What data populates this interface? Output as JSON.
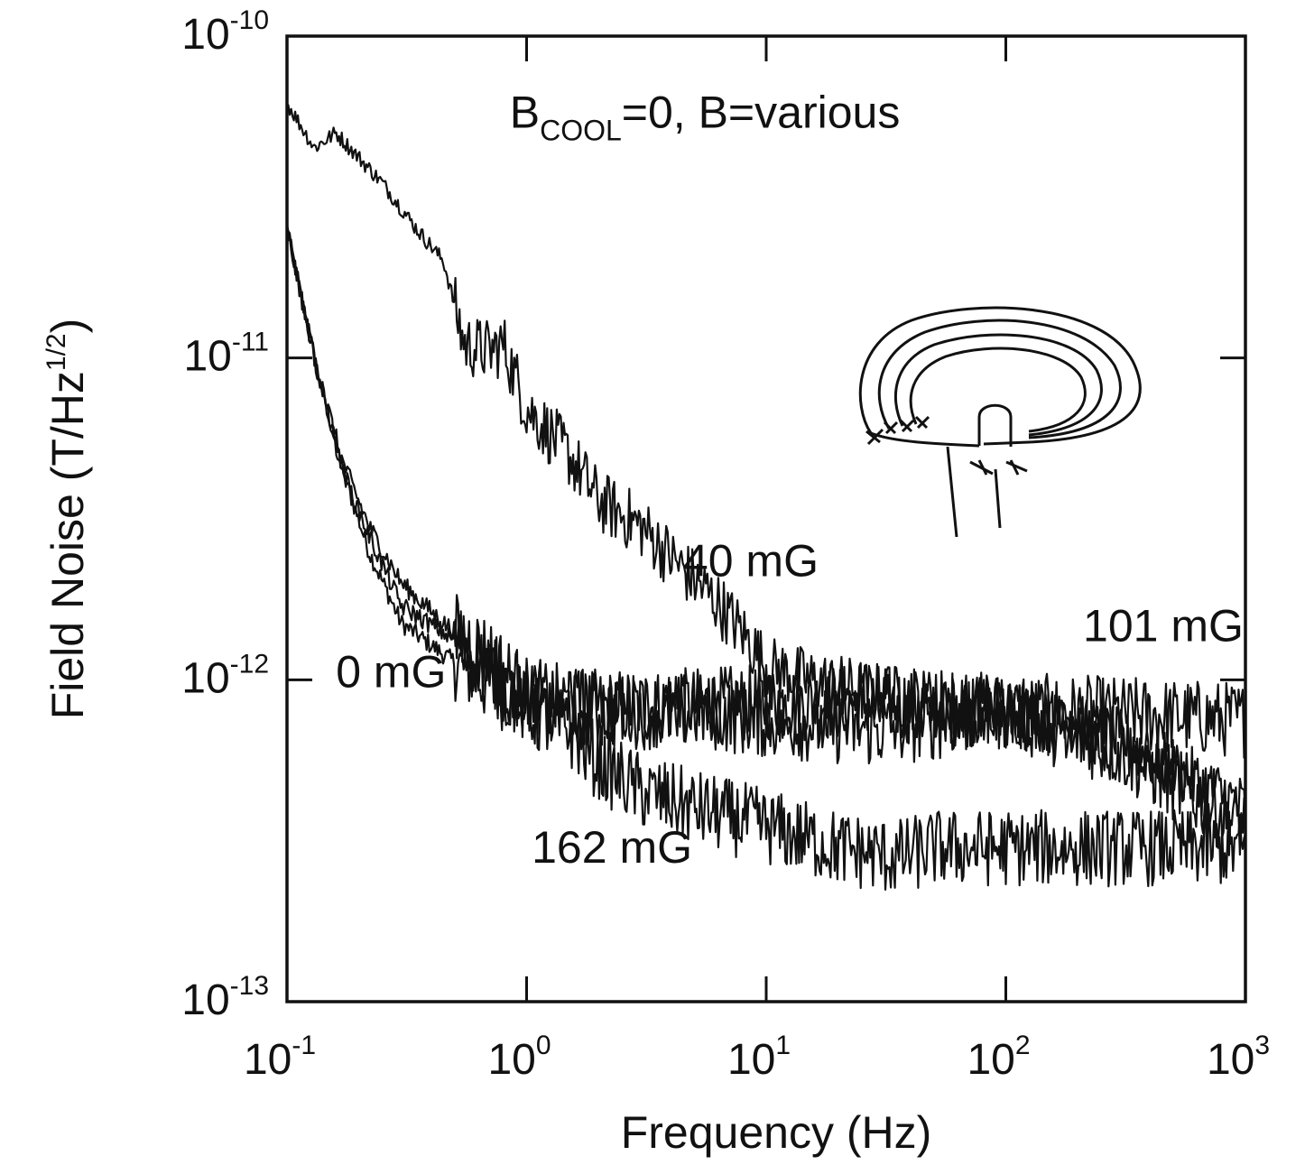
{
  "chart_data": {
    "type": "line",
    "scale": {
      "x": "log",
      "y": "log"
    },
    "xlim": [
      0.1,
      1000
    ],
    "ylim": [
      1e-13,
      1e-10
    ],
    "xlabel": "Frequency (Hz)",
    "ylabel_main": "Field Noise (T/Hz",
    "ylabel_sup": "1/2",
    "ylabel_close": ")",
    "x_ticks": [
      {
        "base": "10",
        "exp": "-1",
        "value": 0.1
      },
      {
        "base": "10",
        "exp": "0",
        "value": 1
      },
      {
        "base": "10",
        "exp": "1",
        "value": 10
      },
      {
        "base": "10",
        "exp": "2",
        "value": 100
      },
      {
        "base": "10",
        "exp": "3",
        "value": 1000
      }
    ],
    "y_ticks": [
      {
        "base": "10",
        "exp": "-13",
        "value": 1e-13
      },
      {
        "base": "10",
        "exp": "-12",
        "value": 1e-12
      },
      {
        "base": "10",
        "exp": "-11",
        "value": 1e-11
      },
      {
        "base": "10",
        "exp": "-10",
        "value": 1e-10
      }
    ],
    "annotation": {
      "main": "B",
      "sub": "COOL",
      "rest": "=0, B=various"
    },
    "series": [
      {
        "label": "0 mG",
        "color": "#111111",
        "points": [
          [
            0.1,
            2.5e-11
          ],
          [
            0.13,
            1e-11
          ],
          [
            0.17,
            4.5e-12
          ],
          [
            0.22,
            2.5e-12
          ],
          [
            0.3,
            1.5e-12
          ],
          [
            0.45,
            1.2e-12
          ],
          [
            0.7,
            9.5e-13
          ],
          [
            1,
            8.5e-13
          ],
          [
            2,
            8.2e-13
          ],
          [
            5,
            8.3e-13
          ],
          [
            10,
            8.5e-13
          ],
          [
            30,
            8.5e-13
          ],
          [
            100,
            8e-13
          ],
          [
            300,
            7.8e-13
          ],
          [
            1000,
            7.5e-13
          ]
        ],
        "noise": 0.12
      },
      {
        "label": "40 mG",
        "color": "#111111",
        "points": [
          [
            0.1,
            6.2e-11
          ],
          [
            0.13,
            4.5e-11
          ],
          [
            0.16,
            5e-11
          ],
          [
            0.25,
            3.5e-11
          ],
          [
            0.35,
            2.5e-11
          ],
          [
            0.45,
            2e-11
          ],
          [
            0.55,
            1.1e-11
          ],
          [
            0.7,
            1.05e-11
          ],
          [
            0.8,
            1.1e-11
          ],
          [
            1,
            7e-12
          ],
          [
            1.5,
            5e-12
          ],
          [
            2,
            3.6e-12
          ],
          [
            3,
            3e-12
          ],
          [
            4,
            2.4e-12
          ],
          [
            6,
            1.8e-12
          ],
          [
            8,
            1.4e-12
          ],
          [
            10,
            1.1e-12
          ],
          [
            15,
            1e-12
          ],
          [
            30,
            9e-13
          ],
          [
            100,
            8e-13
          ],
          [
            300,
            6.5e-13
          ],
          [
            1000,
            4e-13
          ]
        ],
        "noise": 0.1
      },
      {
        "label": "101 mG",
        "color": "#111111",
        "points": [
          [
            0.1,
            2.5e-11
          ],
          [
            0.13,
            1e-11
          ],
          [
            0.17,
            4.8e-12
          ],
          [
            0.22,
            3e-12
          ],
          [
            0.3,
            2e-12
          ],
          [
            0.45,
            1.5e-12
          ],
          [
            0.7,
            1.2e-12
          ],
          [
            1,
            9e-13
          ],
          [
            2,
            8e-13
          ],
          [
            5,
            8e-13
          ],
          [
            10,
            7.5e-13
          ],
          [
            30,
            7e-13
          ],
          [
            100,
            8e-13
          ],
          [
            300,
            6e-13
          ],
          [
            1000,
            3.5e-13
          ]
        ],
        "noise": 0.12
      },
      {
        "label": "162 mG",
        "color": "#111111",
        "points": [
          [
            0.1,
            2.5e-11
          ],
          [
            0.13,
            1e-11
          ],
          [
            0.17,
            4.5e-12
          ],
          [
            0.22,
            2.8e-12
          ],
          [
            0.3,
            1.7e-12
          ],
          [
            0.45,
            1.4e-12
          ],
          [
            0.7,
            1.1e-12
          ],
          [
            1,
            8e-13
          ],
          [
            1.5,
            7e-13
          ],
          [
            2,
            5.5e-13
          ],
          [
            3,
            4.5e-13
          ],
          [
            5,
            4e-13
          ],
          [
            10,
            3.5e-13
          ],
          [
            20,
            3e-13
          ],
          [
            35,
            2.8e-13
          ],
          [
            50,
            3e-13
          ],
          [
            100,
            3e-13
          ],
          [
            300,
            3e-13
          ],
          [
            1000,
            3e-13
          ]
        ],
        "noise": 0.12
      }
    ],
    "series_labels": [
      {
        "text": "0 mG",
        "at": [
          0.16,
          9.5e-13
        ]
      },
      {
        "text": "40 mG",
        "at": [
          4.5,
          2.1e-12
        ]
      },
      {
        "text": "101 mG",
        "at": [
          210,
          1.32e-12
        ]
      },
      {
        "text": "162 mG",
        "at": [
          1.05,
          2.7e-13
        ]
      }
    ],
    "annotation_at": [
      0.85,
      5.2e-11
    ]
  }
}
